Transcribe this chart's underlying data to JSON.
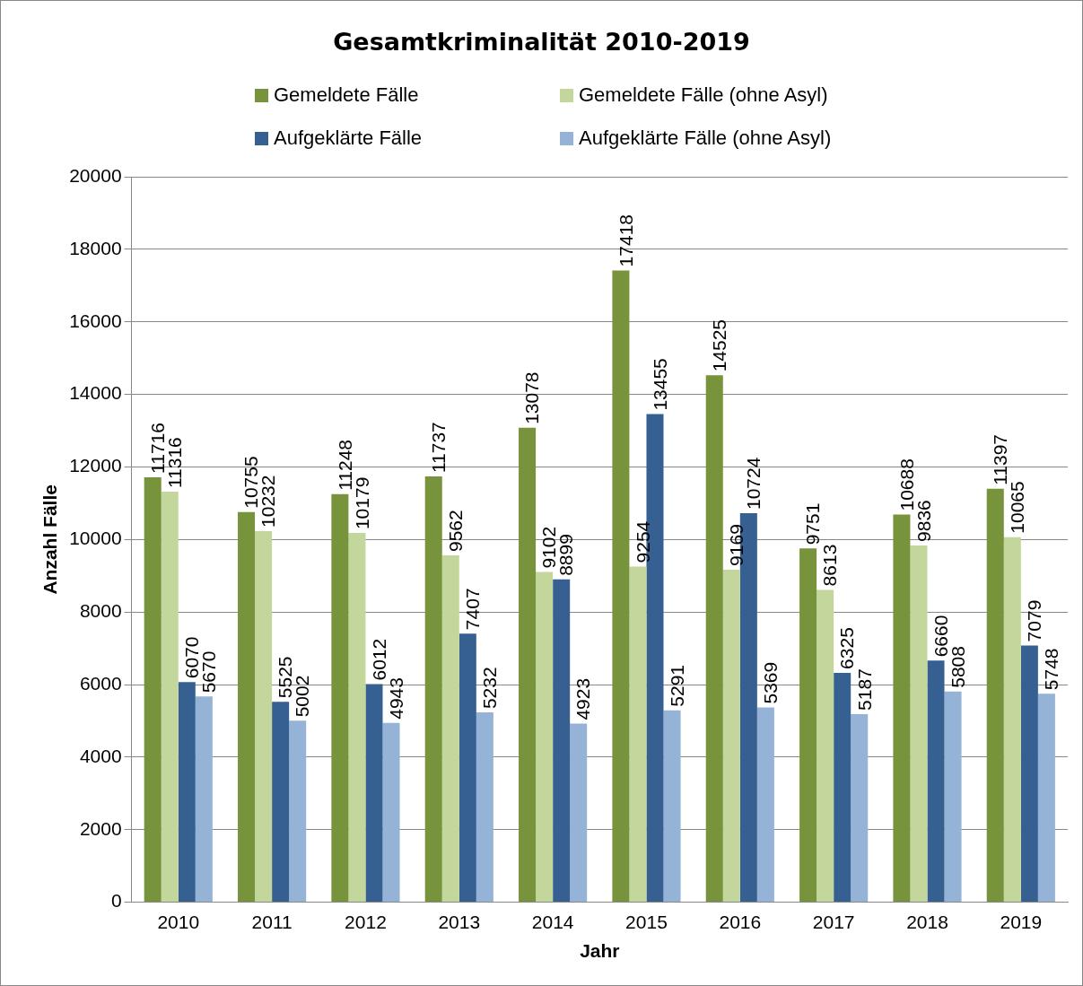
{
  "chart_data": {
    "type": "bar",
    "title": "Gesamtkriminalität 2010-2019",
    "xlabel": "Jahr",
    "ylabel": "Anzahl Fälle",
    "categories": [
      "2010",
      "2011",
      "2012",
      "2013",
      "2014",
      "2015",
      "2016",
      "2017",
      "2018",
      "2019"
    ],
    "series": [
      {
        "name": "Gemeldete Fälle",
        "color": "#77933c",
        "values": [
          11716,
          10755,
          11248,
          11737,
          13078,
          17418,
          14525,
          9751,
          10688,
          11397
        ]
      },
      {
        "name": "Gemeldete Fälle (ohne Asyl)",
        "color": "#c3d69b",
        "values": [
          11316,
          10232,
          10179,
          9562,
          9102,
          9254,
          9169,
          8613,
          9836,
          10065
        ]
      },
      {
        "name": "Aufgeklärte Fälle",
        "color": "#376092",
        "values": [
          6070,
          5525,
          6012,
          7407,
          8899,
          13455,
          10724,
          6325,
          6660,
          7079
        ]
      },
      {
        "name": "Aufgeklärte Fälle (ohne Asyl)",
        "color": "#95b3d7",
        "values": [
          5670,
          5002,
          4943,
          5232,
          4923,
          5291,
          5369,
          5187,
          5808,
          5748
        ]
      }
    ],
    "ylim": [
      0,
      20000
    ],
    "yticks": [
      0,
      2000,
      4000,
      6000,
      8000,
      10000,
      12000,
      14000,
      16000,
      18000,
      20000
    ],
    "grid": "y",
    "legend": "top",
    "data_labels": true
  }
}
